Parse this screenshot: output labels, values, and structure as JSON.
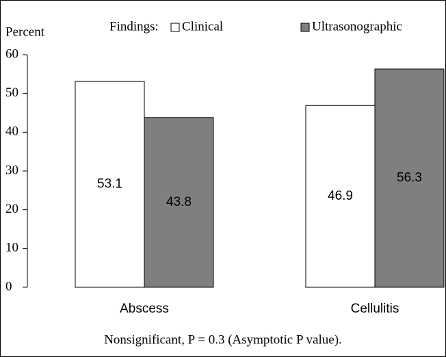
{
  "chart_data": {
    "type": "bar",
    "y_label": "Percent",
    "legend_title": "Findings:",
    "categories": [
      "Abscess",
      "Cellulitis"
    ],
    "series": [
      {
        "name": "Clinical",
        "color": "#ffffff",
        "values": [
          53.1,
          46.9
        ]
      },
      {
        "name": "Ultrasonographic",
        "color": "#7f7f7f",
        "values": [
          43.8,
          56.3
        ]
      }
    ],
    "ylim": [
      0,
      60
    ],
    "yticks": [
      0,
      10,
      20,
      30,
      40,
      50,
      60
    ],
    "annotation": "Nonsignificant, P = 0.3 (Asymptotic P value)."
  }
}
